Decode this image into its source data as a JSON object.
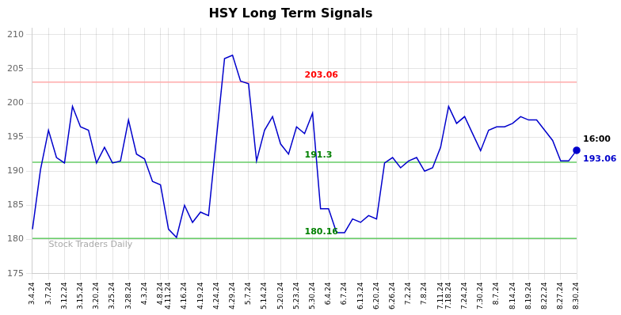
{
  "chart_data": {
    "type": "line",
    "title": "HSY Long Term Signals",
    "categories": [
      "3.4.24",
      null,
      "3.7.24",
      null,
      "3.12.24",
      null,
      "3.15.24",
      null,
      "3.20.24",
      null,
      "3.25.24",
      null,
      "3.28.24",
      null,
      "4.3.24",
      null,
      "4.8.24",
      "4.11.24",
      null,
      "4.16.24",
      null,
      "4.19.24",
      null,
      "4.24.24",
      null,
      "4.29.24",
      null,
      "5.7.24",
      null,
      "5.14.24",
      null,
      "5.20.24",
      null,
      "5.23.24",
      null,
      "5.30.24",
      null,
      "6.4.24",
      null,
      "6.7.24",
      null,
      "6.13.24",
      null,
      "6.20.24",
      null,
      "6.26.24",
      null,
      "7.2.24",
      null,
      "7.8.24",
      null,
      "7.11.24",
      "7.18.24",
      null,
      "7.24.24",
      null,
      "7.30.24",
      null,
      "8.7.24",
      null,
      "8.14.24",
      null,
      "8.19.24",
      null,
      "8.22.24",
      null,
      "8.27.24",
      null,
      "8.30.24"
    ],
    "values": [
      181.5,
      190.2,
      196.0,
      192.0,
      191.2,
      199.5,
      196.5,
      196.0,
      191.2,
      193.5,
      191.2,
      191.5,
      197.5,
      192.5,
      191.8,
      188.5,
      188.0,
      181.5,
      180.3,
      185.0,
      182.5,
      184.0,
      183.5,
      195.0,
      206.5,
      207.0,
      203.2,
      202.8,
      191.5,
      196.0,
      198.0,
      194.0,
      192.5,
      196.5,
      195.5,
      198.5,
      184.5,
      184.5,
      181.0,
      181.0,
      183.0,
      182.5,
      183.5,
      183.0,
      191.2,
      192.0,
      190.5,
      191.5,
      192.0,
      190.0,
      190.5,
      193.5,
      199.5,
      197.0,
      198.0,
      195.5,
      193.0,
      196.0,
      196.5,
      196.5,
      197.0,
      198.0,
      197.5,
      197.5,
      196.0,
      194.5,
      191.5,
      191.5,
      193.06
    ],
    "color": "#0000cc",
    "ylim": [
      175,
      211
    ],
    "yticks": [
      175,
      180,
      185,
      190,
      195,
      200,
      205,
      210
    ],
    "grid": true,
    "hlines": [
      {
        "value": 203.06,
        "label": "203.06",
        "color": "#ffaaaa",
        "label_color": "red"
      },
      {
        "value": 191.3,
        "label": "191.3",
        "color": "#66cc66",
        "label_color": "green"
      },
      {
        "value": 180.16,
        "label": "180.16",
        "color": "#66cc66",
        "label_color": "green"
      }
    ],
    "end_labels": [
      "16:00",
      "193.06"
    ],
    "watermark": "Stock Traders Daily"
  }
}
